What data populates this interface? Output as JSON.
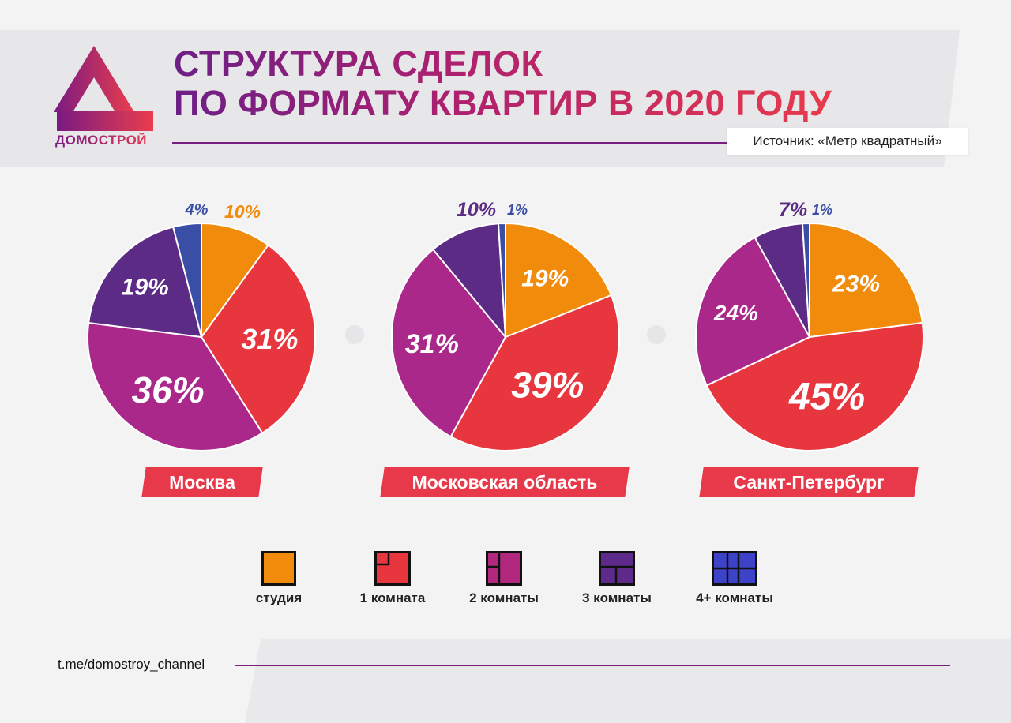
{
  "brand": {
    "name": "ДОМОСТРОЙ",
    "colors": {
      "dark_purple": "#6c1f86",
      "red": "#e8394a"
    }
  },
  "title": {
    "line1": "СТРУКТУРА СДЕЛОК",
    "line2": "ПО ФОРМАТУ КВАРТИР В 2020 ГОДУ"
  },
  "source": "Источник: «Метр квадратный»",
  "footer": {
    "link": "t.me/domostroy_channel"
  },
  "legend": [
    {
      "label": "студия",
      "color": "#f18b0c",
      "icon": "studio-icon"
    },
    {
      "label": "1 комната",
      "color": "#e8363f",
      "icon": "one-room-icon"
    },
    {
      "label": "2 комнаты",
      "color": "#b2287f",
      "icon": "two-rooms-icon"
    },
    {
      "label": "3 комнаты",
      "color": "#5e2a8a",
      "icon": "three-rooms-icon"
    },
    {
      "label": "4+  комнаты",
      "color": "#3d43c8",
      "icon": "four-plus-rooms-icon"
    }
  ],
  "chart_data": [
    {
      "type": "pie",
      "title": "Москва",
      "categories": [
        "студия",
        "1 комната",
        "2 комнаты",
        "3 комнаты",
        "4+  комнаты"
      ],
      "values": [
        10,
        31,
        36,
        19,
        4
      ],
      "labels": [
        "10%",
        "31%",
        "36%",
        "19%",
        "4%"
      ],
      "colors": [
        "#f18b0c",
        "#e8363f",
        "#a9288a",
        "#5b2b86",
        "#3b4ea6"
      ]
    },
    {
      "type": "pie",
      "title": "Московская область",
      "categories": [
        "студия",
        "1 комната",
        "2 комнаты",
        "3 комнаты",
        "4+  комнаты"
      ],
      "values": [
        19,
        39,
        31,
        10,
        1
      ],
      "labels": [
        "19%",
        "39%",
        "31%",
        "10%",
        "1%"
      ],
      "colors": [
        "#f18b0c",
        "#e8363f",
        "#a9288a",
        "#5b2b86",
        "#3b4ea6"
      ]
    },
    {
      "type": "pie",
      "title": "Санкт-Петербург",
      "categories": [
        "студия",
        "1 комната",
        "2 комнаты",
        "3 комнаты",
        "4+  комнаты"
      ],
      "values": [
        23,
        45,
        24,
        7,
        1
      ],
      "labels": [
        "23%",
        "45%",
        "24%",
        "7%",
        "1%"
      ],
      "colors": [
        "#f18b0c",
        "#e8363f",
        "#a9288a",
        "#5b2b86",
        "#3b4ea6"
      ]
    }
  ]
}
